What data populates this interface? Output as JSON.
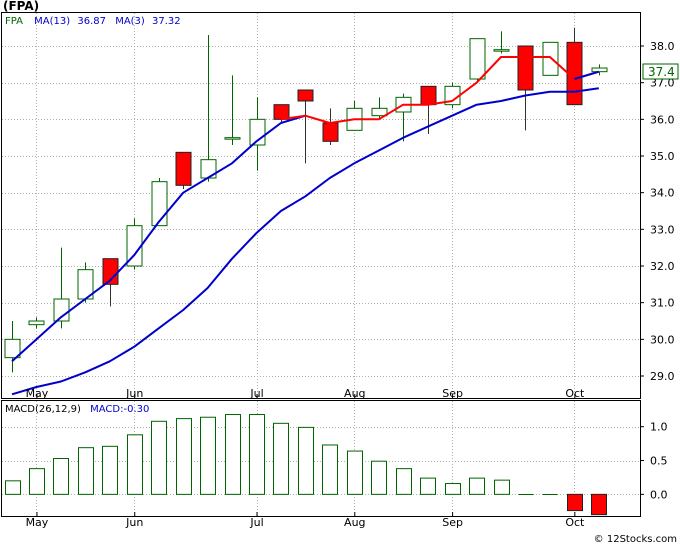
{
  "title": "(FPA)",
  "credit": "© 12Stocks.com",
  "colors": {
    "up": "#006400",
    "down": "#ff0000",
    "ma_short": "#ff0000",
    "ma_long": "#0000cc",
    "ma_recent": "#0000cc",
    "macd": "#006400",
    "grid": "#b0b0b0",
    "legend_ticker": "#006400",
    "legend_ma": "#0000cc",
    "price_tag_bg": "#ffffff",
    "price_tag_text": "#006400"
  },
  "legend": {
    "ticker": "FPA",
    "ma13_label": "MA(13)",
    "ma13_value": "36.87",
    "ma3_label": "MA(3)",
    "ma3_value": "37.32"
  },
  "price_tag": "37.4",
  "macd_legend": {
    "label": "MACD(26,12,9)",
    "value_label": "MACD:-0.30"
  },
  "chart_data": [
    {
      "type": "candlestick",
      "x_labels": [
        "May",
        "Jun",
        "Jul",
        "Aug",
        "Sep",
        "Oct"
      ],
      "x_label_bars": [
        1,
        5,
        10,
        14,
        18,
        23
      ],
      "y_ticks": [
        29.0,
        30.0,
        31.0,
        32.0,
        33.0,
        34.0,
        35.0,
        36.0,
        37.0,
        38.0
      ],
      "ylim": [
        28.4,
        38.9
      ],
      "grid": true,
      "candles": [
        {
          "o": 29.5,
          "h": 30.5,
          "l": 29.1,
          "c": 30.0
        },
        {
          "o": 30.4,
          "h": 30.6,
          "l": 30.3,
          "c": 30.5
        },
        {
          "o": 30.5,
          "h": 32.5,
          "l": 30.3,
          "c": 31.1
        },
        {
          "o": 31.1,
          "h": 32.1,
          "l": 31.0,
          "c": 31.9
        },
        {
          "o": 32.2,
          "h": 32.2,
          "l": 30.9,
          "c": 31.5
        },
        {
          "o": 32.0,
          "h": 33.3,
          "l": 31.9,
          "c": 33.1
        },
        {
          "o": 33.1,
          "h": 34.4,
          "l": 33.1,
          "c": 34.3
        },
        {
          "o": 35.1,
          "h": 35.1,
          "l": 34.1,
          "c": 34.2
        },
        {
          "o": 34.4,
          "h": 38.3,
          "l": 34.3,
          "c": 34.9
        },
        {
          "o": 35.5,
          "h": 37.2,
          "l": 35.3,
          "c": 35.5
        },
        {
          "o": 35.3,
          "h": 36.6,
          "l": 34.6,
          "c": 36.0
        },
        {
          "o": 36.4,
          "h": 36.4,
          "l": 35.9,
          "c": 36.0
        },
        {
          "o": 36.8,
          "h": 36.8,
          "l": 34.8,
          "c": 36.5
        },
        {
          "o": 35.9,
          "h": 36.3,
          "l": 35.3,
          "c": 35.4
        },
        {
          "o": 35.7,
          "h": 36.5,
          "l": 35.7,
          "c": 36.3
        },
        {
          "o": 36.1,
          "h": 36.6,
          "l": 36.0,
          "c": 36.3
        },
        {
          "o": 36.2,
          "h": 36.7,
          "l": 35.4,
          "c": 36.6
        },
        {
          "o": 36.9,
          "h": 36.9,
          "l": 35.6,
          "c": 36.4
        },
        {
          "o": 36.4,
          "h": 37.0,
          "l": 36.3,
          "c": 36.9
        },
        {
          "o": 37.1,
          "h": 38.2,
          "l": 37.0,
          "c": 38.2
        },
        {
          "o": 37.9,
          "h": 38.4,
          "l": 37.8,
          "c": 37.9
        },
        {
          "o": 38.0,
          "h": 38.0,
          "l": 35.7,
          "c": 36.8
        },
        {
          "o": 37.2,
          "h": 38.1,
          "l": 37.2,
          "c": 38.1
        },
        {
          "o": 38.1,
          "h": 38.5,
          "l": 36.4,
          "c": 36.4
        },
        {
          "o": 37.3,
          "h": 37.5,
          "l": 37.2,
          "c": 37.4
        }
      ],
      "ma_short": [
        null,
        null,
        null,
        null,
        null,
        null,
        null,
        null,
        null,
        null,
        null,
        36.0,
        36.1,
        35.9,
        36.0,
        36.0,
        36.4,
        36.4,
        36.5,
        37.0,
        37.7,
        37.7,
        37.7,
        37.1,
        37.3
      ],
      "ma_long": [
        29.4,
        30.0,
        30.6,
        31.1,
        31.6,
        32.3,
        33.2,
        34.0,
        34.4,
        34.8,
        35.4,
        35.9,
        36.1,
        null,
        null,
        null,
        null,
        null,
        null,
        null,
        null,
        null,
        null,
        null,
        null
      ],
      "ma_long_recent": [
        28.5,
        28.7,
        28.85,
        29.1,
        29.4,
        29.8,
        30.3,
        30.8,
        31.4,
        32.2,
        32.9,
        33.5,
        33.9,
        34.4,
        34.8,
        35.15,
        35.5,
        35.8,
        36.1,
        36.4,
        36.5,
        36.65,
        36.75,
        36.75,
        36.85
      ]
    },
    {
      "type": "bar",
      "name": "MACD(26,12,9)",
      "y_ticks": [
        0.0,
        0.5,
        1.0
      ],
      "ylim": [
        -0.32,
        1.38
      ],
      "grid": true,
      "x_labels": [
        "May",
        "Jun",
        "Jul",
        "Aug",
        "Sep",
        "Oct"
      ],
      "x_label_bars": [
        1,
        5,
        10,
        14,
        18,
        23
      ],
      "values": [
        0.2,
        0.38,
        0.53,
        0.69,
        0.71,
        0.88,
        1.08,
        1.12,
        1.14,
        1.18,
        1.18,
        1.05,
        0.99,
        0.73,
        0.64,
        0.49,
        0.38,
        0.24,
        0.16,
        0.24,
        0.21,
        0.0,
        0.0,
        -0.24,
        -0.3
      ]
    }
  ]
}
